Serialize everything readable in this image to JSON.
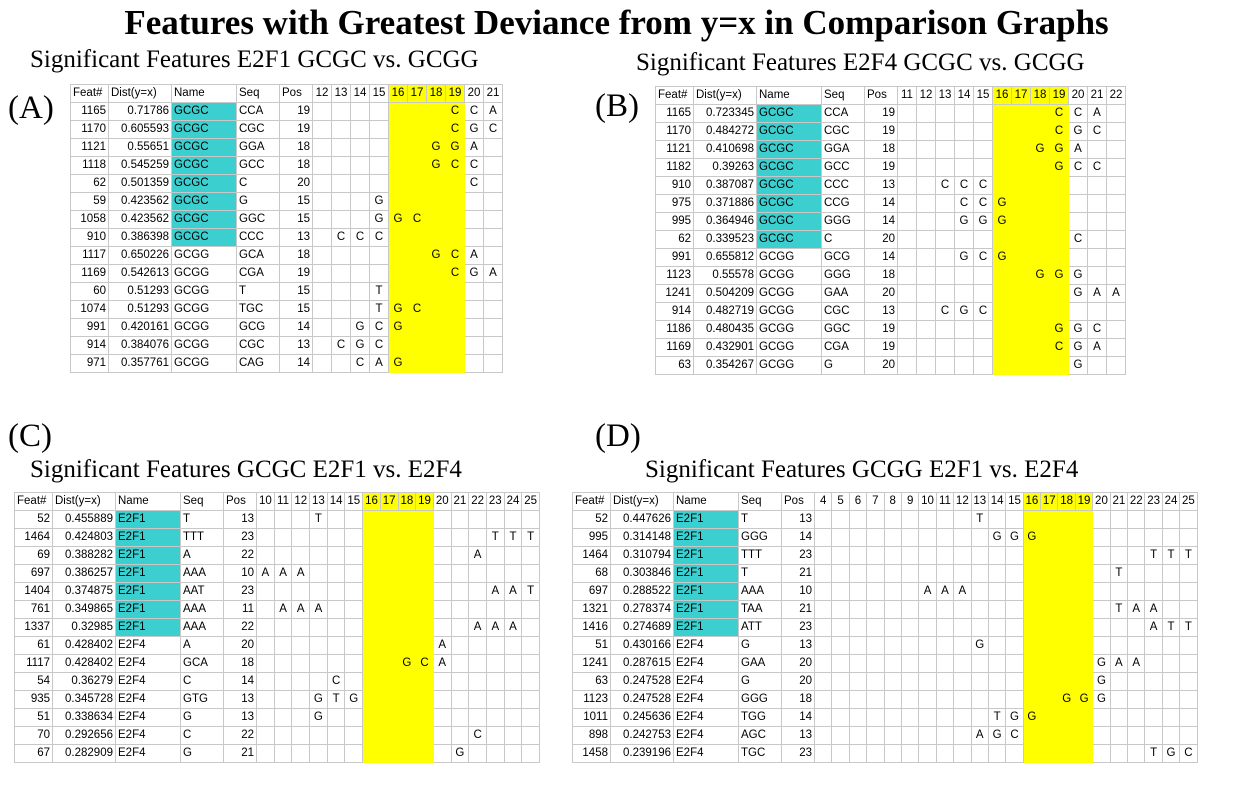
{
  "title": "Features with Greatest Deviance from y=x in Comparison Graphs",
  "colors": {
    "name_highlight": "#3ccfcf",
    "position_highlight": "#ffff00"
  },
  "panels": [
    {
      "label": "(A)",
      "subtitle": "Significant Features E2F1 GCGC vs. GCGG",
      "headers": [
        "Feat#",
        "Dist(y=x)",
        "Name",
        "Seq",
        "Pos"
      ],
      "positions": [
        "12",
        "13",
        "14",
        "15",
        "16",
        "17",
        "18",
        "19",
        "20",
        "21"
      ],
      "highlight_positions": [
        "16",
        "17",
        "18",
        "19"
      ],
      "highlight_name": "GCGC",
      "rows": [
        {
          "feat": "1165",
          "dist": "0.71786",
          "name": "GCGC",
          "seq": "CCA",
          "pos": "19"
        },
        {
          "feat": "1170",
          "dist": "0.605593",
          "name": "GCGC",
          "seq": "CGC",
          "pos": "19"
        },
        {
          "feat": "1121",
          "dist": "0.55651",
          "name": "GCGC",
          "seq": "GGA",
          "pos": "18"
        },
        {
          "feat": "1118",
          "dist": "0.545259",
          "name": "GCGC",
          "seq": "GCC",
          "pos": "18"
        },
        {
          "feat": "62",
          "dist": "0.501359",
          "name": "GCGC",
          "seq": "C",
          "pos": "20"
        },
        {
          "feat": "59",
          "dist": "0.423562",
          "name": "GCGC",
          "seq": "G",
          "pos": "15"
        },
        {
          "feat": "1058",
          "dist": "0.423562",
          "name": "GCGC",
          "seq": "GGC",
          "pos": "15"
        },
        {
          "feat": "910",
          "dist": "0.386398",
          "name": "GCGC",
          "seq": "CCC",
          "pos": "13"
        },
        {
          "feat": "1117",
          "dist": "0.650226",
          "name": "GCGG",
          "seq": "GCA",
          "pos": "18"
        },
        {
          "feat": "1169",
          "dist": "0.542613",
          "name": "GCGG",
          "seq": "CGA",
          "pos": "19"
        },
        {
          "feat": "60",
          "dist": "0.51293",
          "name": "GCGG",
          "seq": "T",
          "pos": "15"
        },
        {
          "feat": "1074",
          "dist": "0.51293",
          "name": "GCGG",
          "seq": "TGC",
          "pos": "15"
        },
        {
          "feat": "991",
          "dist": "0.420161",
          "name": "GCGG",
          "seq": "GCG",
          "pos": "14"
        },
        {
          "feat": "914",
          "dist": "0.384076",
          "name": "GCGG",
          "seq": "CGC",
          "pos": "13"
        },
        {
          "feat": "971",
          "dist": "0.357761",
          "name": "GCGG",
          "seq": "CAG",
          "pos": "14"
        }
      ]
    },
    {
      "label": "(B)",
      "subtitle": "Significant Features E2F4 GCGC vs. GCGG",
      "headers": [
        "Feat#",
        "Dist(y=x)",
        "Name",
        "Seq",
        "Pos"
      ],
      "positions": [
        "11",
        "12",
        "13",
        "14",
        "15",
        "16",
        "17",
        "18",
        "19",
        "20",
        "21",
        "22"
      ],
      "highlight_positions": [
        "16",
        "17",
        "18",
        "19"
      ],
      "highlight_name": "GCGC",
      "rows": [
        {
          "feat": "1165",
          "dist": "0.723345",
          "name": "GCGC",
          "seq": "CCA",
          "pos": "19"
        },
        {
          "feat": "1170",
          "dist": "0.484272",
          "name": "GCGC",
          "seq": "CGC",
          "pos": "19"
        },
        {
          "feat": "1121",
          "dist": "0.410698",
          "name": "GCGC",
          "seq": "GGA",
          "pos": "18"
        },
        {
          "feat": "1182",
          "dist": "0.39263",
          "name": "GCGC",
          "seq": "GCC",
          "pos": "19"
        },
        {
          "feat": "910",
          "dist": "0.387087",
          "name": "GCGC",
          "seq": "CCC",
          "pos": "13"
        },
        {
          "feat": "975",
          "dist": "0.371886",
          "name": "GCGC",
          "seq": "CCG",
          "pos": "14"
        },
        {
          "feat": "995",
          "dist": "0.364946",
          "name": "GCGC",
          "seq": "GGG",
          "pos": "14"
        },
        {
          "feat": "62",
          "dist": "0.339523",
          "name": "GCGC",
          "seq": "C",
          "pos": "20"
        },
        {
          "feat": "991",
          "dist": "0.655812",
          "name": "GCGG",
          "seq": "GCG",
          "pos": "14"
        },
        {
          "feat": "1123",
          "dist": "0.55578",
          "name": "GCGG",
          "seq": "GGG",
          "pos": "18"
        },
        {
          "feat": "1241",
          "dist": "0.504209",
          "name": "GCGG",
          "seq": "GAA",
          "pos": "20"
        },
        {
          "feat": "914",
          "dist": "0.482719",
          "name": "GCGG",
          "seq": "CGC",
          "pos": "13"
        },
        {
          "feat": "1186",
          "dist": "0.480435",
          "name": "GCGG",
          "seq": "GGC",
          "pos": "19"
        },
        {
          "feat": "1169",
          "dist": "0.432901",
          "name": "GCGG",
          "seq": "CGA",
          "pos": "19"
        },
        {
          "feat": "63",
          "dist": "0.354267",
          "name": "GCGG",
          "seq": "G",
          "pos": "20"
        }
      ]
    },
    {
      "label": "(C)",
      "subtitle": "Significant Features GCGC E2F1 vs. E2F4",
      "headers": [
        "Feat#",
        "Dist(y=x)",
        "Name",
        "Seq",
        "Pos"
      ],
      "positions": [
        "10",
        "11",
        "12",
        "13",
        "14",
        "15",
        "16",
        "17",
        "18",
        "19",
        "20",
        "21",
        "22",
        "23",
        "24",
        "25"
      ],
      "highlight_positions": [
        "16",
        "17",
        "18",
        "19"
      ],
      "highlight_name": "E2F1",
      "rows": [
        {
          "feat": "52",
          "dist": "0.455889",
          "name": "E2F1",
          "seq": "T",
          "pos": "13"
        },
        {
          "feat": "1464",
          "dist": "0.424803",
          "name": "E2F1",
          "seq": "TTT",
          "pos": "23"
        },
        {
          "feat": "69",
          "dist": "0.388282",
          "name": "E2F1",
          "seq": "A",
          "pos": "22"
        },
        {
          "feat": "697",
          "dist": "0.386257",
          "name": "E2F1",
          "seq": "AAA",
          "pos": "10"
        },
        {
          "feat": "1404",
          "dist": "0.374875",
          "name": "E2F1",
          "seq": "AAT",
          "pos": "23"
        },
        {
          "feat": "761",
          "dist": "0.349865",
          "name": "E2F1",
          "seq": "AAA",
          "pos": "11"
        },
        {
          "feat": "1337",
          "dist": "0.32985",
          "name": "E2F1",
          "seq": "AAA",
          "pos": "22"
        },
        {
          "feat": "61",
          "dist": "0.428402",
          "name": "E2F4",
          "seq": "A",
          "pos": "20"
        },
        {
          "feat": "1117",
          "dist": "0.428402",
          "name": "E2F4",
          "seq": "GCA",
          "pos": "18"
        },
        {
          "feat": "54",
          "dist": "0.36279",
          "name": "E2F4",
          "seq": "C",
          "pos": "14"
        },
        {
          "feat": "935",
          "dist": "0.345728",
          "name": "E2F4",
          "seq": "GTG",
          "pos": "13"
        },
        {
          "feat": "51",
          "dist": "0.338634",
          "name": "E2F4",
          "seq": "G",
          "pos": "13"
        },
        {
          "feat": "70",
          "dist": "0.292656",
          "name": "E2F4",
          "seq": "C",
          "pos": "22"
        },
        {
          "feat": "67",
          "dist": "0.282909",
          "name": "E2F4",
          "seq": "G",
          "pos": "21"
        }
      ]
    },
    {
      "label": "(D)",
      "subtitle": "Significant Features GCGG E2F1 vs. E2F4",
      "headers": [
        "Feat#",
        "Dist(y=x)",
        "Name",
        "Seq",
        "Pos"
      ],
      "positions": [
        "4",
        "5",
        "6",
        "7",
        "8",
        "9",
        "10",
        "11",
        "12",
        "13",
        "14",
        "15",
        "16",
        "17",
        "18",
        "19",
        "20",
        "21",
        "22",
        "23",
        "24",
        "25"
      ],
      "highlight_positions": [
        "16",
        "17",
        "18",
        "19"
      ],
      "highlight_name": "E2F1",
      "rows": [
        {
          "feat": "52",
          "dist": "0.447626",
          "name": "E2F1",
          "seq": "T",
          "pos": "13"
        },
        {
          "feat": "995",
          "dist": "0.314148",
          "name": "E2F1",
          "seq": "GGG",
          "pos": "14"
        },
        {
          "feat": "1464",
          "dist": "0.310794",
          "name": "E2F1",
          "seq": "TTT",
          "pos": "23"
        },
        {
          "feat": "68",
          "dist": "0.303846",
          "name": "E2F1",
          "seq": "T",
          "pos": "21"
        },
        {
          "feat": "697",
          "dist": "0.288522",
          "name": "E2F1",
          "seq": "AAA",
          "pos": "10"
        },
        {
          "feat": "1321",
          "dist": "0.278374",
          "name": "E2F1",
          "seq": "TAA",
          "pos": "21"
        },
        {
          "feat": "1416",
          "dist": "0.274689",
          "name": "E2F1",
          "seq": "ATT",
          "pos": "23"
        },
        {
          "feat": "51",
          "dist": "0.430166",
          "name": "E2F4",
          "seq": "G",
          "pos": "13"
        },
        {
          "feat": "1241",
          "dist": "0.287615",
          "name": "E2F4",
          "seq": "GAA",
          "pos": "20"
        },
        {
          "feat": "63",
          "dist": "0.247528",
          "name": "E2F4",
          "seq": "G",
          "pos": "20"
        },
        {
          "feat": "1123",
          "dist": "0.247528",
          "name": "E2F4",
          "seq": "GGG",
          "pos": "18"
        },
        {
          "feat": "1011",
          "dist": "0.245636",
          "name": "E2F4",
          "seq": "TGG",
          "pos": "14"
        },
        {
          "feat": "898",
          "dist": "0.242753",
          "name": "E2F4",
          "seq": "AGC",
          "pos": "13"
        },
        {
          "feat": "1458",
          "dist": "0.239196",
          "name": "E2F4",
          "seq": "TGC",
          "pos": "23"
        }
      ]
    }
  ]
}
